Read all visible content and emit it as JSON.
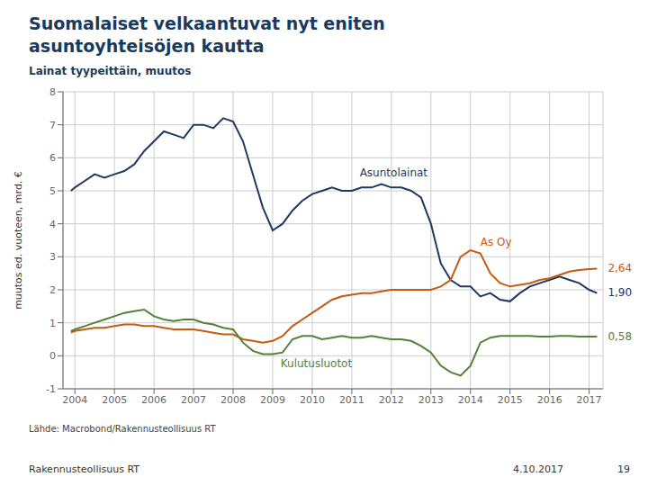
{
  "chart_data": {
    "type": "line",
    "title": "Suomalaiset velkaantuvat nyt eniten\nasuntoyhteisöjen kautta",
    "subtitle": "Lainat tyypeittäin, muutos",
    "y_label": "muutos ed. vuoteen, mrd. €",
    "source": "Lähde: Macrobond/Rakennusteollisuus RT",
    "footer": [
      "Rakennusteollisuus RT",
      "4.10.2017",
      "19"
    ],
    "grid": true,
    "xlim": [
      2003.7,
      2017.35
    ],
    "xticks": [
      2004,
      2005,
      2006,
      2007,
      2008,
      2009,
      2010,
      2011,
      2012,
      2013,
      2014,
      2015,
      2016,
      2017
    ],
    "ylim": [
      -1,
      8
    ],
    "yticks": [
      -1,
      0,
      1,
      2,
      3,
      4,
      5,
      6,
      7,
      8
    ],
    "x": [
      2003.9,
      2004.0,
      2004.25,
      2004.5,
      2004.75,
      2005.0,
      2005.25,
      2005.5,
      2005.75,
      2006.0,
      2006.25,
      2006.5,
      2006.75,
      2007.0,
      2007.25,
      2007.5,
      2007.75,
      2008.0,
      2008.25,
      2008.5,
      2008.75,
      2009.0,
      2009.25,
      2009.5,
      2009.75,
      2010.0,
      2010.25,
      2010.5,
      2010.75,
      2011.0,
      2011.25,
      2011.5,
      2011.75,
      2012.0,
      2012.25,
      2012.5,
      2012.75,
      2013.0,
      2013.25,
      2013.5,
      2013.75,
      2014.0,
      2014.25,
      2014.5,
      2014.75,
      2015.0,
      2015.25,
      2015.5,
      2015.75,
      2016.0,
      2016.25,
      2016.5,
      2016.75,
      2017.0,
      2017.2
    ],
    "series": [
      {
        "name": "Asuntolainat",
        "color": "#1f3864",
        "values": [
          5.0,
          5.1,
          5.3,
          5.5,
          5.4,
          5.5,
          5.6,
          5.8,
          6.2,
          6.5,
          6.8,
          6.7,
          6.6,
          7.0,
          7.0,
          6.9,
          7.2,
          7.1,
          6.5,
          5.5,
          4.5,
          3.8,
          4.0,
          4.4,
          4.7,
          4.9,
          5.0,
          5.1,
          5.0,
          5.0,
          5.1,
          5.1,
          5.2,
          5.1,
          5.1,
          5.0,
          4.8,
          4.0,
          2.8,
          2.3,
          2.1,
          2.1,
          1.8,
          1.9,
          1.7,
          1.65,
          1.9,
          2.1,
          2.2,
          2.3,
          2.4,
          2.3,
          2.2,
          2.0,
          1.9
        ],
        "value_labels": [
          null,
          null,
          null,
          null,
          null,
          null,
          null,
          null,
          null,
          null,
          null,
          null,
          null,
          null,
          null,
          null,
          null,
          null,
          null,
          null,
          null,
          null,
          null,
          null,
          null,
          null,
          null,
          null,
          null,
          null,
          null,
          null,
          null,
          null,
          null,
          null,
          null,
          null,
          null,
          null,
          null,
          null,
          null,
          null,
          null,
          null,
          null,
          null,
          null,
          null,
          null,
          null,
          null,
          null,
          "1,90"
        ]
      },
      {
        "name": "As Oy",
        "color": "#c55a11",
        "values": [
          0.7,
          0.75,
          0.8,
          0.85,
          0.85,
          0.9,
          0.95,
          0.95,
          0.9,
          0.9,
          0.85,
          0.8,
          0.8,
          0.8,
          0.75,
          0.7,
          0.65,
          0.65,
          0.5,
          0.45,
          0.4,
          0.45,
          0.6,
          0.9,
          1.1,
          1.3,
          1.5,
          1.7,
          1.8,
          1.85,
          1.9,
          1.9,
          1.95,
          2.0,
          2.0,
          2.0,
          2.0,
          2.0,
          2.1,
          2.3,
          3.0,
          3.2,
          3.1,
          2.5,
          2.2,
          2.1,
          2.15,
          2.2,
          2.3,
          2.35,
          2.45,
          2.55,
          2.6,
          2.63,
          2.64
        ],
        "value_labels": [
          null,
          null,
          null,
          null,
          null,
          null,
          null,
          null,
          null,
          null,
          null,
          null,
          null,
          null,
          null,
          null,
          null,
          null,
          null,
          null,
          null,
          null,
          null,
          null,
          null,
          null,
          null,
          null,
          null,
          null,
          null,
          null,
          null,
          null,
          null,
          null,
          null,
          null,
          null,
          null,
          null,
          null,
          null,
          null,
          null,
          null,
          null,
          null,
          null,
          null,
          null,
          null,
          null,
          null,
          "2,64"
        ]
      },
      {
        "name": "Kulutusluotot",
        "color": "#538135",
        "values": [
          0.75,
          0.8,
          0.9,
          1.0,
          1.1,
          1.2,
          1.3,
          1.35,
          1.4,
          1.2,
          1.1,
          1.05,
          1.1,
          1.1,
          1.0,
          0.95,
          0.85,
          0.8,
          0.4,
          0.15,
          0.05,
          0.05,
          0.1,
          0.5,
          0.6,
          0.6,
          0.5,
          0.55,
          0.6,
          0.55,
          0.55,
          0.6,
          0.55,
          0.5,
          0.5,
          0.45,
          0.3,
          0.1,
          -0.3,
          -0.5,
          -0.6,
          -0.3,
          0.4,
          0.55,
          0.6,
          0.6,
          0.6,
          0.6,
          0.58,
          0.58,
          0.6,
          0.6,
          0.58,
          0.58,
          0.58
        ],
        "value_labels": [
          null,
          null,
          null,
          null,
          null,
          null,
          null,
          null,
          null,
          null,
          null,
          null,
          null,
          null,
          null,
          null,
          null,
          null,
          null,
          null,
          null,
          null,
          null,
          null,
          null,
          null,
          null,
          null,
          null,
          null,
          null,
          null,
          null,
          null,
          null,
          null,
          null,
          null,
          null,
          null,
          null,
          null,
          null,
          null,
          null,
          null,
          null,
          null,
          null,
          null,
          null,
          null,
          null,
          null,
          "0,58"
        ]
      }
    ]
  }
}
